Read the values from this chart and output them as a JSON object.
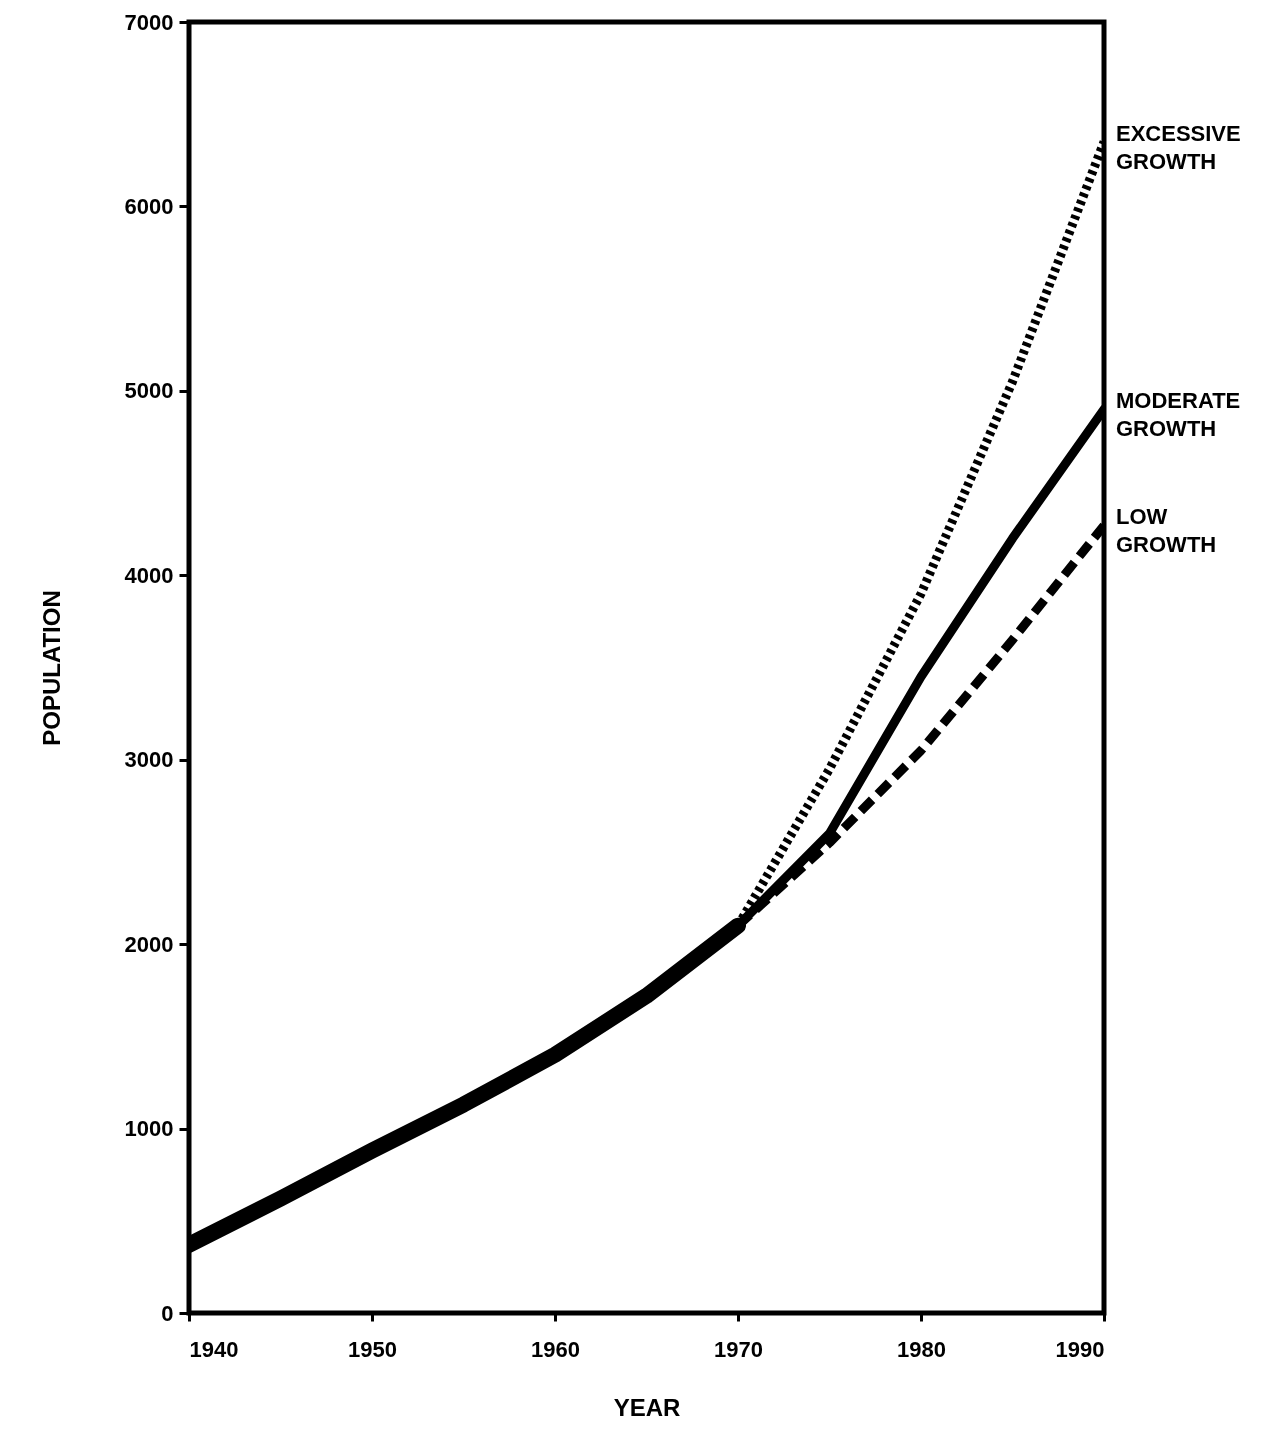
{
  "chart_data": {
    "type": "line",
    "xlabel": "YEAR",
    "ylabel": "POPULATION",
    "xlim": [
      1940,
      1990
    ],
    "xticks": [
      1940,
      1950,
      1960,
      1970,
      1980,
      1990
    ],
    "ylim": [
      0,
      7000
    ],
    "yticks": [
      0,
      1000,
      2000,
      3000,
      4000,
      5000,
      6000,
      7000
    ],
    "grid": false,
    "series": [
      {
        "color": "#000000",
        "line_style": "solid",
        "x": [
          1940,
          1945,
          1950,
          1955,
          1960,
          1965,
          1970
        ],
        "values": [
          370,
          620,
          880,
          1130,
          1400,
          1720,
          2100
        ]
      },
      {
        "name": "EXCESSIVE GROWTH",
        "color": "#000000",
        "line_style": "dotted",
        "x": [
          1970,
          1975,
          1980,
          1985,
          1990
        ],
        "values": [
          2100,
          2950,
          3900,
          5050,
          6350
        ]
      },
      {
        "name": "MODERATE GROWTH",
        "color": "#000000",
        "line_style": "solid",
        "x": [
          1970,
          1975,
          1980,
          1985,
          1990
        ],
        "values": [
          2100,
          2600,
          3450,
          4200,
          4900
        ]
      },
      {
        "name": "LOW GROWTH",
        "color": "#000000",
        "line_style": "dashed",
        "x": [
          1970,
          1975,
          1980,
          1985,
          1990
        ],
        "values": [
          2100,
          2550,
          3050,
          3650,
          4270
        ]
      }
    ]
  }
}
